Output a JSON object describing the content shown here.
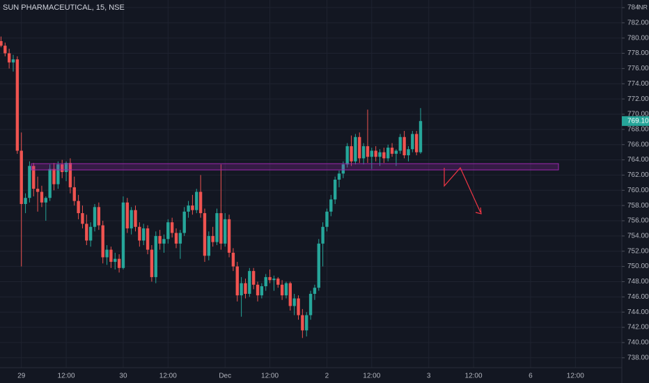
{
  "chart_data": {
    "type": "candlestick",
    "title": "SUN PHARMACEUTICAL, 15, NSE",
    "currency": "INR",
    "up_color": "#26a69a",
    "down_color": "#ef5350",
    "grid": true,
    "open": [
      779.6,
      779.0,
      778.0,
      776.8,
      777.2,
      765.2,
      758.2,
      759.0,
      763.2,
      760.2,
      759.8,
      758.4,
      759.0,
      762.8,
      760.8,
      763.4,
      762.4,
      763.6,
      760.4,
      758.6,
      757.0,
      755.6,
      753.4,
      755.2,
      757.8,
      755.4,
      751.2,
      752.2,
      750.6,
      751.0,
      749.8,
      758.4,
      755.0,
      757.4,
      755.2,
      753.4,
      755.0,
      752.2,
      748.6,
      754.0,
      753.0,
      753.6,
      755.8,
      754.4,
      753.0,
      754.4,
      757.2,
      758.0,
      757.4,
      759.8,
      757.0,
      751.4,
      754.0,
      753.2,
      757.0,
      753.0,
      756.2,
      751.8,
      750.0,
      746.2,
      747.8,
      746.4,
      749.4,
      747.6,
      746.2,
      747.4,
      748.6,
      748.2,
      748.4,
      747.6,
      746.2,
      747.8,
      744.8,
      745.8,
      743.6,
      741.6,
      743.6,
      746.4,
      747.2,
      753.0,
      755.2,
      757.2,
      758.8,
      761.4,
      762.2,
      763.4,
      765.8,
      763.8,
      767.0,
      764.2,
      765.8,
      764.4,
      765.2,
      764.4,
      765.0,
      764.2,
      765.6,
      764.8,
      765.2,
      767.0,
      764.6,
      765.4,
      767.4,
      765.0
    ],
    "high": [
      780.2,
      779.4,
      778.6,
      777.8,
      777.6,
      767.6,
      759.6,
      763.8,
      763.6,
      761.8,
      760.6,
      759.2,
      763.4,
      763.6,
      763.8,
      764.0,
      763.8,
      764.2,
      761.8,
      759.4,
      758.0,
      756.8,
      755.8,
      758.2,
      758.4,
      756.0,
      752.8,
      752.6,
      751.8,
      751.6,
      759.2,
      759.0,
      757.8,
      758.0,
      755.8,
      755.6,
      755.4,
      752.8,
      754.6,
      754.8,
      754.2,
      756.2,
      756.4,
      755.0,
      754.8,
      757.8,
      758.6,
      759.4,
      760.2,
      762.0,
      757.6,
      754.6,
      755.2,
      757.6,
      763.4,
      757.0,
      756.8,
      752.4,
      750.6,
      748.6,
      748.4,
      749.8,
      749.8,
      748.0,
      747.8,
      749.0,
      749.6,
      748.8,
      748.6,
      748.2,
      748.0,
      748.0,
      746.4,
      746.2,
      744.4,
      744.0,
      746.8,
      747.6,
      753.6,
      755.8,
      757.6,
      759.4,
      761.8,
      762.6,
      763.8,
      766.2,
      767.2,
      767.4,
      767.6,
      766.2,
      770.6,
      765.6,
      765.8,
      765.4,
      765.6,
      766.0,
      766.2,
      765.4,
      767.4,
      767.8,
      765.8,
      767.8,
      767.8,
      770.8
    ],
    "low": [
      778.8,
      777.6,
      776.0,
      775.6,
      764.8,
      750.0,
      757.0,
      758.4,
      759.2,
      757.2,
      757.8,
      756.0,
      758.6,
      760.0,
      760.2,
      761.6,
      761.2,
      759.6,
      758.0,
      756.2,
      755.0,
      752.8,
      752.6,
      754.6,
      754.8,
      750.4,
      750.2,
      749.8,
      749.6,
      749.2,
      749.6,
      754.4,
      754.2,
      754.6,
      752.6,
      752.8,
      751.6,
      748.0,
      747.8,
      752.2,
      751.8,
      753.0,
      753.8,
      752.4,
      751.0,
      754.0,
      756.4,
      756.8,
      757.0,
      756.4,
      750.6,
      750.8,
      752.6,
      752.8,
      752.2,
      752.6,
      751.2,
      749.4,
      745.4,
      743.4,
      745.8,
      746.0,
      747.0,
      745.4,
      745.8,
      746.8,
      747.8,
      746.8,
      747.2,
      745.6,
      745.8,
      744.2,
      743.6,
      743.0,
      740.6,
      740.8,
      743.0,
      745.6,
      746.8,
      750.0,
      754.6,
      756.6,
      758.2,
      760.4,
      761.6,
      763.0,
      763.2,
      763.4,
      763.6,
      763.4,
      763.6,
      762.8,
      763.8,
      763.2,
      763.6,
      763.8,
      764.4,
      763.2,
      764.8,
      764.2,
      763.8,
      765.0,
      764.6,
      764.8
    ],
    "close": [
      779.0,
      778.0,
      776.8,
      777.2,
      765.2,
      758.2,
      759.0,
      763.2,
      760.2,
      759.8,
      758.4,
      759.0,
      762.8,
      760.8,
      763.4,
      762.4,
      763.6,
      760.4,
      758.6,
      757.0,
      755.6,
      753.4,
      755.2,
      757.8,
      755.4,
      751.2,
      752.2,
      750.6,
      751.0,
      749.8,
      758.4,
      755.0,
      757.4,
      755.2,
      753.4,
      755.0,
      752.2,
      748.6,
      754.0,
      753.0,
      753.6,
      755.8,
      754.4,
      753.0,
      754.4,
      757.2,
      758.0,
      757.4,
      759.8,
      757.0,
      751.4,
      754.0,
      753.2,
      757.0,
      753.0,
      756.2,
      751.8,
      750.0,
      746.2,
      747.8,
      746.4,
      749.4,
      747.6,
      746.2,
      747.4,
      748.6,
      748.2,
      748.4,
      747.6,
      746.2,
      747.8,
      744.8,
      745.8,
      743.6,
      741.6,
      743.6,
      746.4,
      747.2,
      753.0,
      755.2,
      757.2,
      758.8,
      761.4,
      762.2,
      763.4,
      765.8,
      763.8,
      767.0,
      764.2,
      765.8,
      764.4,
      765.2,
      764.4,
      765.0,
      764.2,
      765.6,
      764.8,
      765.2,
      767.0,
      764.6,
      765.4,
      767.4,
      765.0,
      769.1
    ],
    "last_price": {
      "value": 769.1,
      "label": "769.10"
    },
    "ylim": [
      736.7,
      785.0
    ],
    "yticks": [
      {
        "value": 738,
        "label": "738.00"
      },
      {
        "value": 740,
        "label": "740.00"
      },
      {
        "value": 742,
        "label": "742.00"
      },
      {
        "value": 744,
        "label": "744.00"
      },
      {
        "value": 746,
        "label": "746.00"
      },
      {
        "value": 748,
        "label": "748.00"
      },
      {
        "value": 750,
        "label": "750.00"
      },
      {
        "value": 752,
        "label": "752.00"
      },
      {
        "value": 754,
        "label": "754.00"
      },
      {
        "value": 756,
        "label": "756.00"
      },
      {
        "value": 758,
        "label": "758.00"
      },
      {
        "value": 760,
        "label": "760.00"
      },
      {
        "value": 762,
        "label": "762.00"
      },
      {
        "value": 764,
        "label": "764.00"
      },
      {
        "value": 766,
        "label": "766.00"
      },
      {
        "value": 768,
        "label": "768.00"
      },
      {
        "value": 770,
        "label": "770.00"
      },
      {
        "value": 772,
        "label": "772.00"
      },
      {
        "value": 774,
        "label": "774.00"
      },
      {
        "value": 776,
        "label": "776.00"
      },
      {
        "value": 778,
        "label": "778.00"
      },
      {
        "value": 780,
        "label": "780.00"
      },
      {
        "value": 782,
        "label": "782.00"
      },
      {
        "value": 784,
        "label": "784.00"
      }
    ],
    "xlim": [
      -0.25,
      152.4
    ],
    "xticks": [
      {
        "value": 5,
        "label": "29"
      },
      {
        "value": 16,
        "label": "12:00"
      },
      {
        "value": 30,
        "label": "30"
      },
      {
        "value": 41,
        "label": "12:00"
      },
      {
        "value": 55,
        "label": "Dec"
      },
      {
        "value": 66,
        "label": "12:00"
      },
      {
        "value": 80,
        "label": "2"
      },
      {
        "value": 91,
        "label": "12:00"
      },
      {
        "value": 105,
        "label": "3"
      },
      {
        "value": 116,
        "label": "12:00"
      },
      {
        "value": 130,
        "label": "6"
      },
      {
        "value": 141,
        "label": "12:00"
      }
    ]
  }
}
